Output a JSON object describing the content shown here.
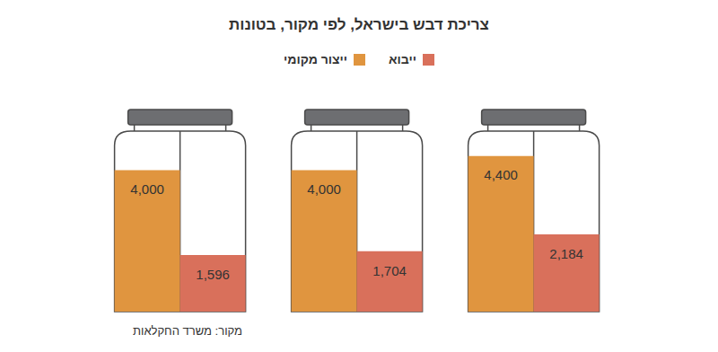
{
  "chart_data": {
    "type": "bar",
    "title": "צריכת דבש בישראל, לפי מקור, בטונות",
    "categories": [
      null,
      null,
      null
    ],
    "series": [
      {
        "name": "ייצור מקומי",
        "color": "#e0953f",
        "values": [
          4000,
          4000,
          4400
        ],
        "value_labels": [
          "4,000",
          "4,000",
          "4,400"
        ]
      },
      {
        "name": "ייבוא",
        "color": "#d9705b",
        "values": [
          1596,
          1704,
          2184
        ],
        "value_labels": [
          "1,596",
          "1,704",
          "2,184"
        ]
      }
    ],
    "ylim": [
      0,
      5000
    ],
    "tick_labels": false,
    "data_labels": true,
    "legend": "top",
    "annotations": [
      "מקור: משרד החקלאות"
    ]
  }
}
